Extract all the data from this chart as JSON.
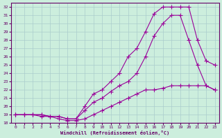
{
  "xlabel": "Windchill (Refroidissement éolien,°C)",
  "bg_color": "#cceedd",
  "line_color": "#990099",
  "grid_color": "#aacccc",
  "axis_color": "#660066",
  "xlim": [
    -0.5,
    23.5
  ],
  "ylim": [
    18,
    32.5
  ],
  "xticks": [
    0,
    1,
    2,
    3,
    4,
    5,
    6,
    7,
    8,
    9,
    10,
    11,
    12,
    13,
    14,
    15,
    16,
    17,
    18,
    19,
    20,
    21,
    22,
    23
  ],
  "yticks": [
    18,
    19,
    20,
    21,
    22,
    23,
    24,
    25,
    26,
    27,
    28,
    29,
    30,
    31,
    32
  ],
  "line1_x": [
    0,
    1,
    2,
    3,
    4,
    5,
    6,
    7,
    8,
    9,
    10,
    11,
    12,
    13,
    14,
    15,
    16,
    17,
    18,
    19,
    20,
    21,
    22,
    23
  ],
  "line1_y": [
    19,
    19,
    19,
    19,
    18.8,
    18.8,
    18.5,
    18.5,
    20,
    21.5,
    22,
    23,
    24,
    26,
    27,
    29,
    31.2,
    32,
    32,
    32,
    32,
    28,
    25.5,
    25
  ],
  "line2_x": [
    0,
    1,
    2,
    3,
    4,
    5,
    6,
    7,
    8,
    9,
    10,
    11,
    12,
    13,
    14,
    15,
    16,
    17,
    18,
    19,
    20,
    21,
    22,
    23
  ],
  "line2_y": [
    19,
    19,
    19,
    19,
    18.8,
    18.8,
    18.5,
    18.5,
    19.5,
    20.5,
    21,
    21.8,
    22.5,
    23,
    24,
    26,
    28.5,
    30,
    31,
    31,
    28,
    25,
    22.5,
    22
  ],
  "line3_x": [
    0,
    1,
    2,
    3,
    4,
    5,
    6,
    7,
    8,
    9,
    10,
    11,
    12,
    13,
    14,
    15,
    16,
    17,
    18,
    19,
    20,
    21,
    22,
    23
  ],
  "line3_y": [
    19,
    19,
    19,
    18.8,
    18.8,
    18.5,
    18.3,
    18.3,
    18.5,
    19,
    19.5,
    20,
    20.5,
    21,
    21.5,
    22,
    22,
    22.2,
    22.5,
    22.5,
    22.5,
    22.5,
    22.5,
    22
  ]
}
